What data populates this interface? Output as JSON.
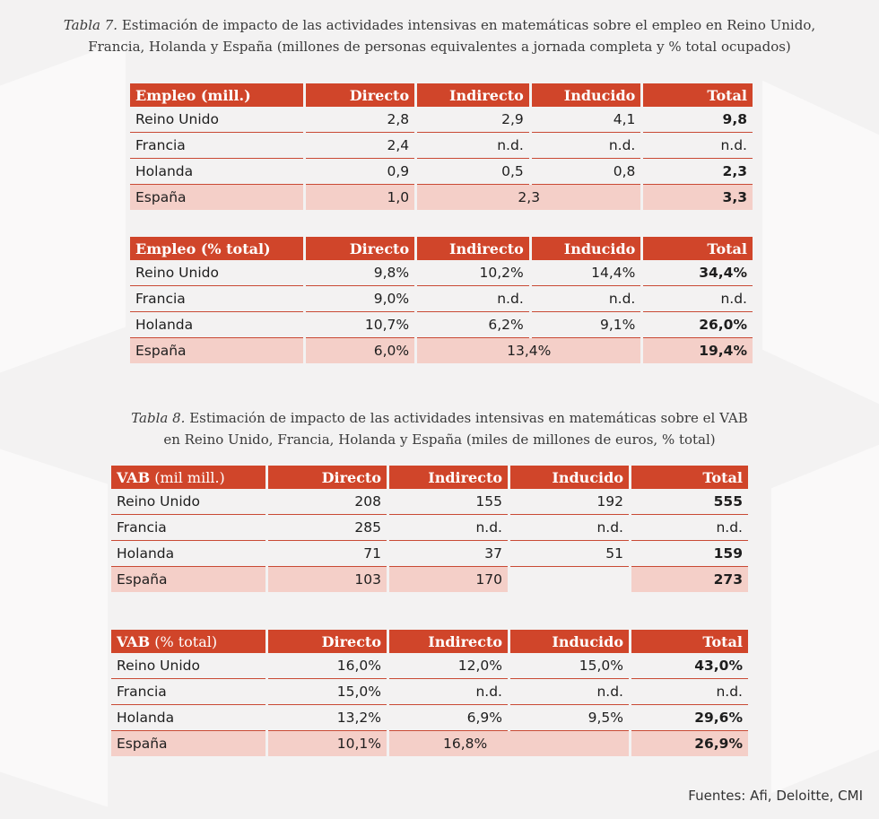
{
  "table7": {
    "caption_italic": "Tabla 7.",
    "caption_line1": " Estimación de impacto de las actividades intensivas en matemáticas sobre el empleo en Reino Unido,",
    "caption_line2": "Francia, Holanda y España (millones de personas equivalentes a jornada completa y % total ocupados)",
    "blocks": [
      {
        "header": [
          "Empleo (mill.)",
          "Directo",
          "Indirecto",
          "Inducido",
          "Total"
        ],
        "rows": [
          [
            "Reino Unido",
            "2,8",
            "2,9",
            "4,1",
            "9,8"
          ],
          [
            "Francia",
            "2,4",
            "n.d.",
            "n.d.",
            "n.d."
          ],
          [
            "Holanda",
            "0,9",
            "0,5",
            "0,8",
            "2,3"
          ]
        ],
        "spain": {
          "label": "España",
          "directo": "1,0",
          "combined": "2,3",
          "total": "3,3"
        }
      },
      {
        "header": [
          "Empleo (% total)",
          "Directo",
          "Indirecto",
          "Inducido",
          "Total"
        ],
        "rows": [
          [
            "Reino Unido",
            "9,8%",
            "10,2%",
            "14,4%",
            "34,4%"
          ],
          [
            "Francia",
            "9,0%",
            "n.d.",
            "n.d.",
            "n.d."
          ],
          [
            "Holanda",
            "10,7%",
            "6,2%",
            "9,1%",
            "26,0%"
          ]
        ],
        "spain": {
          "label": "España",
          "directo": "6,0%",
          "combined": "13,4%",
          "total": "19,4%"
        }
      }
    ]
  },
  "table8": {
    "caption_italic": "Tabla 8.",
    "caption_line1": " Estimación de impacto de las actividades intensivas en matemáticas sobre el VAB",
    "caption_line2": "en Reino Unido, Francia, Holanda y España (miles de millones de euros, % total)",
    "blocks": [
      {
        "header_bold": "VAB",
        "header_light": " (mil mill.)",
        "header": [
          "Directo",
          "Indirecto",
          "Inducido",
          "Total"
        ],
        "rows": [
          [
            "Reino Unido",
            "208",
            "155",
            "192",
            "555"
          ],
          [
            "Francia",
            "285",
            "n.d.",
            "n.d.",
            "n.d."
          ],
          [
            "Holanda",
            "71",
            "37",
            "51",
            "159"
          ]
        ],
        "spain": {
          "label": "España",
          "directo": "103",
          "combined": "170",
          "total": "273"
        }
      },
      {
        "header_bold": "VAB",
        "header_light": " (% total)",
        "header": [
          "Directo",
          "Indirecto",
          "Inducido",
          "Total"
        ],
        "rows": [
          [
            "Reino Unido",
            "16,0%",
            "12,0%",
            "15,0%",
            "43,0%"
          ],
          [
            "Francia",
            "15,0%",
            "n.d.",
            "n.d.",
            "n.d."
          ],
          [
            "Holanda",
            "13,2%",
            "6,9%",
            "9,5%",
            "29,6%"
          ]
        ],
        "spain": {
          "label": "España",
          "directo": "10,1%",
          "combined": "16,8%",
          "total": "26,9%"
        }
      }
    ]
  },
  "sources": "Fuentes: Afi, Deloitte, CMI"
}
